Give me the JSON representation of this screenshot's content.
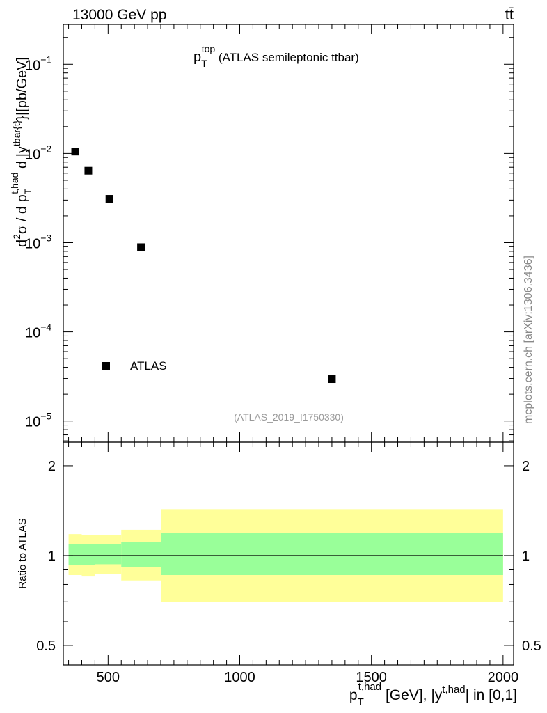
{
  "header": {
    "energy_label": "13000 GeV pp",
    "process_label": "tt̄",
    "watermark": "mcplots.cern.ch [arXiv:1306.3436]"
  },
  "chart_data": [
    {
      "type": "scatter",
      "panel": "main",
      "title": {
        "main": "p",
        "sub": "T",
        "sup": "top",
        "rest": " (ATLAS semileptonic ttbar)"
      },
      "analysis_id": "(ATLAS_2019_I1750330)",
      "ylabel": {
        "d2": "d",
        "d2_sup": "2",
        "sigma": "σ  /  d p",
        "pt_sub": "T",
        "pt_sup": "t,had",
        "d_y": " d |y",
        "y_sup": "tbar{t}",
        "units": "}|[pb/GeV]"
      },
      "yscale": "log",
      "xlim": [
        330,
        2040
      ],
      "ylim": [
        5.8e-06,
        0.28
      ],
      "y_ticks": [
        {
          "value": 0.1,
          "label": "10",
          "exp": "−1"
        },
        {
          "value": 0.01,
          "label": "10",
          "exp": "−2"
        },
        {
          "value": 0.001,
          "label": "10",
          "exp": "−3"
        },
        {
          "value": 0.0001,
          "label": "10",
          "exp": "−4"
        },
        {
          "value": 1e-05,
          "label": "10",
          "exp": "−5"
        }
      ],
      "series": [
        {
          "name": "ATLAS",
          "marker": "square",
          "color": "#000000",
          "points": [
            {
              "x": 375,
              "y": 0.0105
            },
            {
              "x": 425,
              "y": 0.0064
            },
            {
              "x": 505,
              "y": 0.0031
            },
            {
              "x": 625,
              "y": 0.00089
            },
            {
              "x": 1350,
              "y": 2.95e-05
            }
          ]
        }
      ],
      "legend_position": "bottom-left"
    },
    {
      "type": "area",
      "panel": "ratio",
      "ylabel": "Ratio to ATLAS",
      "xlabel": {
        "p": "p",
        "sub": "T",
        "sup": "t,had",
        "mid": " [GeV], |y",
        "y_sup": "t,had",
        "end": "| in [0,1]"
      },
      "xlim": [
        330,
        2040
      ],
      "ylim": [
        0.43,
        2.4
      ],
      "x_ticks": [
        500,
        1000,
        1500,
        2000
      ],
      "y_ticks": [
        0.5,
        1,
        2
      ],
      "reference_line": 1,
      "bins": [
        {
          "x": [
            350,
            400
          ],
          "stat": [
            0.93,
            1.09
          ],
          "total": [
            0.86,
            1.18
          ]
        },
        {
          "x": [
            400,
            450
          ],
          "stat": [
            0.93,
            1.09
          ],
          "total": [
            0.855,
            1.17
          ]
        },
        {
          "x": [
            450,
            550
          ],
          "stat": [
            0.935,
            1.09
          ],
          "total": [
            0.865,
            1.17
          ]
        },
        {
          "x": [
            550,
            700
          ],
          "stat": [
            0.915,
            1.11
          ],
          "total": [
            0.825,
            1.22
          ]
        },
        {
          "x": [
            700,
            2000
          ],
          "stat": [
            0.86,
            1.19
          ],
          "total": [
            0.7,
            1.43
          ]
        }
      ],
      "colors": {
        "stat": "#99ff99",
        "total": "#ffff99"
      }
    }
  ]
}
